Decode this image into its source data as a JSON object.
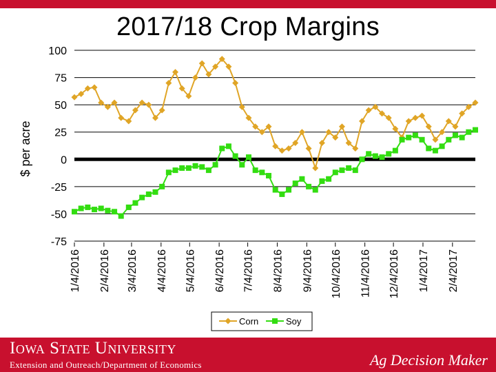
{
  "chart_data": {
    "type": "line",
    "title": "2017/18 Crop Margins",
    "ylabel": "$ per acre",
    "xlabel": "",
    "ylim": [
      -75,
      100
    ],
    "yticks": [
      "100",
      "75",
      "50",
      "25",
      "0",
      "-25",
      "-50",
      "-75"
    ],
    "yticks_values": [
      100,
      75,
      50,
      25,
      0,
      -25,
      -50,
      -75
    ],
    "xlim": [
      "2016-01-04",
      "2017-02-28"
    ],
    "xticks": [
      "1/4/2016",
      "2/4/2016",
      "3/4/2016",
      "4/4/2016",
      "5/4/2016",
      "6/4/2016",
      "7/4/2016",
      "8/4/2016",
      "9/4/2016",
      "10/4/2016",
      "11/4/2016",
      "12/4/2016",
      "1/4/2017",
      "2/4/2017"
    ],
    "xticks_dates": [
      "2016-01-04",
      "2016-02-04",
      "2016-03-04",
      "2016-04-04",
      "2016-05-04",
      "2016-06-04",
      "2016-07-04",
      "2016-08-04",
      "2016-09-04",
      "2016-10-04",
      "2016-11-04",
      "2016-12-04",
      "2017-01-04",
      "2017-02-04"
    ],
    "legend_position": "bottom",
    "grid": "horizontal",
    "zero_line": true,
    "series": [
      {
        "name": "Corn",
        "color": "#e0a526",
        "marker": "diamond",
        "x": [
          "2016-01-04",
          "2016-01-11",
          "2016-01-18",
          "2016-01-25",
          "2016-02-01",
          "2016-02-08",
          "2016-02-15",
          "2016-02-22",
          "2016-03-01",
          "2016-03-08",
          "2016-03-15",
          "2016-03-22",
          "2016-03-29",
          "2016-04-05",
          "2016-04-12",
          "2016-04-19",
          "2016-04-26",
          "2016-05-03",
          "2016-05-10",
          "2016-05-17",
          "2016-05-24",
          "2016-05-31",
          "2016-06-07",
          "2016-06-14",
          "2016-06-21",
          "2016-06-28",
          "2016-07-05",
          "2016-07-12",
          "2016-07-19",
          "2016-07-26",
          "2016-08-02",
          "2016-08-09",
          "2016-08-16",
          "2016-08-23",
          "2016-08-30",
          "2016-09-06",
          "2016-09-13",
          "2016-09-20",
          "2016-09-27",
          "2016-10-04",
          "2016-10-11",
          "2016-10-18",
          "2016-10-25",
          "2016-11-01",
          "2016-11-08",
          "2016-11-15",
          "2016-11-22",
          "2016-11-29",
          "2016-12-06",
          "2016-12-13",
          "2016-12-20",
          "2016-12-27",
          "2017-01-03",
          "2017-01-10",
          "2017-01-17",
          "2017-01-24",
          "2017-01-31",
          "2017-02-07",
          "2017-02-14",
          "2017-02-21",
          "2017-02-28"
        ],
        "values": [
          57,
          60,
          65,
          66,
          52,
          48,
          52,
          38,
          35,
          45,
          52,
          50,
          38,
          45,
          70,
          80,
          65,
          58,
          75,
          88,
          78,
          85,
          92,
          85,
          70,
          48,
          38,
          30,
          25,
          30,
          12,
          8,
          10,
          15,
          25,
          10,
          -8,
          15,
          25,
          20,
          30,
          15,
          10,
          35,
          45,
          48,
          42,
          38,
          28,
          20,
          35,
          38,
          40,
          30,
          18,
          25,
          35,
          30,
          42,
          48,
          52
        ]
      },
      {
        "name": "Soy",
        "color": "#33dd11",
        "marker": "square",
        "x": [
          "2016-01-04",
          "2016-01-11",
          "2016-01-18",
          "2016-01-25",
          "2016-02-01",
          "2016-02-08",
          "2016-02-15",
          "2016-02-22",
          "2016-03-01",
          "2016-03-08",
          "2016-03-15",
          "2016-03-22",
          "2016-03-29",
          "2016-04-05",
          "2016-04-12",
          "2016-04-19",
          "2016-04-26",
          "2016-05-03",
          "2016-05-10",
          "2016-05-17",
          "2016-05-24",
          "2016-05-31",
          "2016-06-07",
          "2016-06-14",
          "2016-06-21",
          "2016-06-28",
          "2016-07-05",
          "2016-07-12",
          "2016-07-19",
          "2016-07-26",
          "2016-08-02",
          "2016-08-09",
          "2016-08-16",
          "2016-08-23",
          "2016-08-30",
          "2016-09-06",
          "2016-09-13",
          "2016-09-20",
          "2016-09-27",
          "2016-10-04",
          "2016-10-11",
          "2016-10-18",
          "2016-10-25",
          "2016-11-01",
          "2016-11-08",
          "2016-11-15",
          "2016-11-22",
          "2016-11-29",
          "2016-12-06",
          "2016-12-13",
          "2016-12-20",
          "2016-12-27",
          "2017-01-03",
          "2017-01-10",
          "2017-01-17",
          "2017-01-24",
          "2017-01-31",
          "2017-02-07",
          "2017-02-14",
          "2017-02-21",
          "2017-02-28"
        ],
        "values": [
          -48,
          -45,
          -44,
          -46,
          -45,
          -47,
          -48,
          -52,
          -44,
          -40,
          -35,
          -32,
          -30,
          -25,
          -12,
          -10,
          -8,
          -8,
          -6,
          -7,
          -10,
          -5,
          10,
          12,
          3,
          -5,
          2,
          -10,
          -12,
          -15,
          -28,
          -32,
          -28,
          -22,
          -18,
          -25,
          -28,
          -20,
          -18,
          -12,
          -10,
          -8,
          -10,
          0,
          5,
          3,
          2,
          5,
          8,
          18,
          20,
          22,
          18,
          10,
          8,
          12,
          18,
          22,
          20,
          25,
          27
        ]
      }
    ]
  },
  "footer": {
    "university": "Iowa State University",
    "department": "Extension and Outreach/Department of Economics",
    "brand": "Ag Decision Maker"
  }
}
